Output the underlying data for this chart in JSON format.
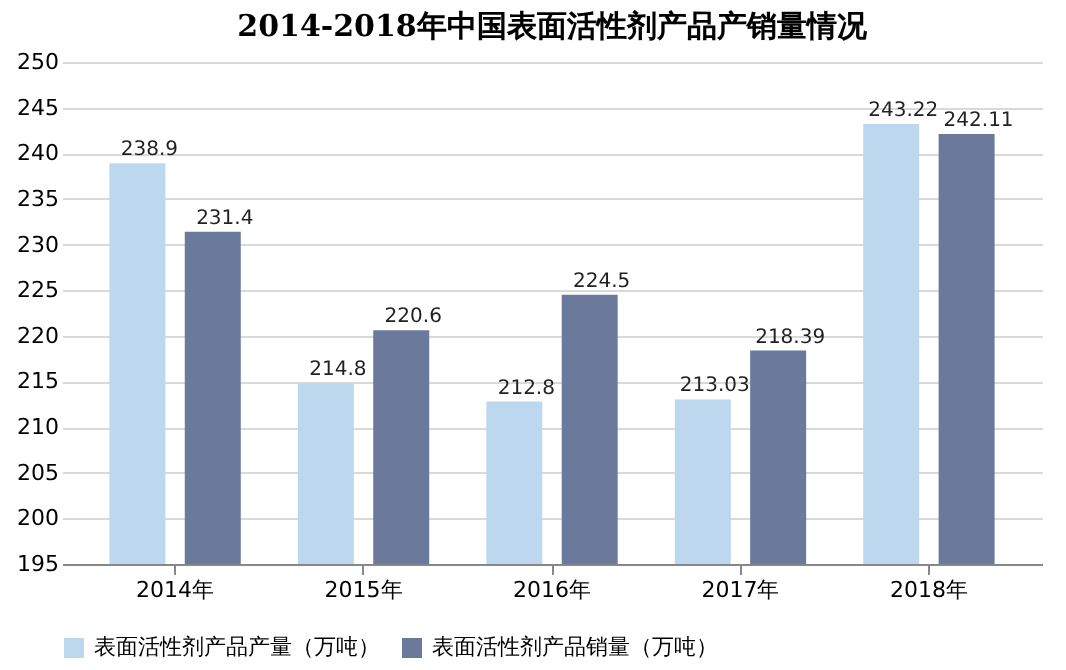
{
  "chart_data": {
    "type": "bar",
    "title": "2014-2018年中国表面活性剂产品产销量情况",
    "categories": [
      "2014年",
      "2015年",
      "2016年",
      "2017年",
      "2018年"
    ],
    "series": [
      {
        "name": "表面活性剂产品产量（万吨）",
        "color": "#bdd7ee",
        "values": [
          238.9,
          214.8,
          212.8,
          213.03,
          243.22
        ]
      },
      {
        "name": "表面活性剂产品销量（万吨）",
        "color": "#6b7a9c",
        "values": [
          231.4,
          220.6,
          224.5,
          218.39,
          242.11
        ]
      }
    ],
    "ylim": [
      195,
      250
    ],
    "yticks": [
      195,
      200,
      205,
      210,
      215,
      220,
      225,
      230,
      235,
      240,
      245,
      250
    ],
    "grid": "y",
    "legend": "bottom",
    "data_labels": true
  }
}
